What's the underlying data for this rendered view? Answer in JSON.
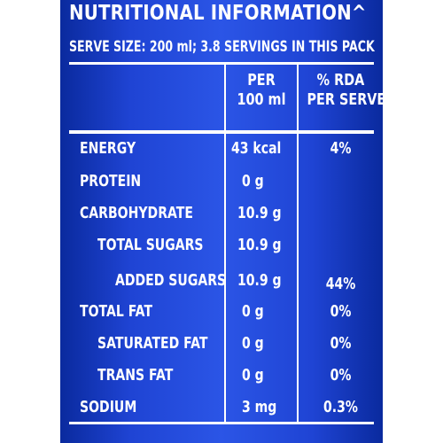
{
  "title": "NUTRITIONAL INFORMATION^",
  "serve_size": "SERVE SIZE: 200 ml; 3.8 SERVINGS IN THIS PACK",
  "columns": {
    "per_100ml_line1": "PER",
    "per_100ml_line2": "100 ml",
    "rda_line1": "% RDA",
    "rda_line2": "PER SERVE"
  },
  "rows": [
    {
      "name": "ENERGY",
      "per_100ml": "43 kcal",
      "rda": "4%"
    },
    {
      "name": "PROTEIN",
      "per_100ml": "0 g",
      "rda": ""
    },
    {
      "name": "CARBOHYDRATE",
      "per_100ml": "10.9 g",
      "rda": ""
    },
    {
      "name": "TOTAL SUGARS",
      "per_100ml": "10.9 g",
      "rda": ""
    },
    {
      "name": "ADDED SUGARS",
      "per_100ml": "10.9 g",
      "rda": "44%"
    },
    {
      "name": "TOTAL FAT",
      "per_100ml": "0 g",
      "rda": "0%"
    },
    {
      "name": "SATURATED FAT",
      "per_100ml": "0 g",
      "rda": "0%"
    },
    {
      "name": "TRANS FAT",
      "per_100ml": "0 g",
      "rda": "0%"
    },
    {
      "name": "SODIUM",
      "per_100ml": "3 mg",
      "rda": "0.3%"
    }
  ],
  "colors": {
    "panel_dark": "#0a2a9e",
    "panel_light": "#2b55e6",
    "text": "#ffffff"
  }
}
